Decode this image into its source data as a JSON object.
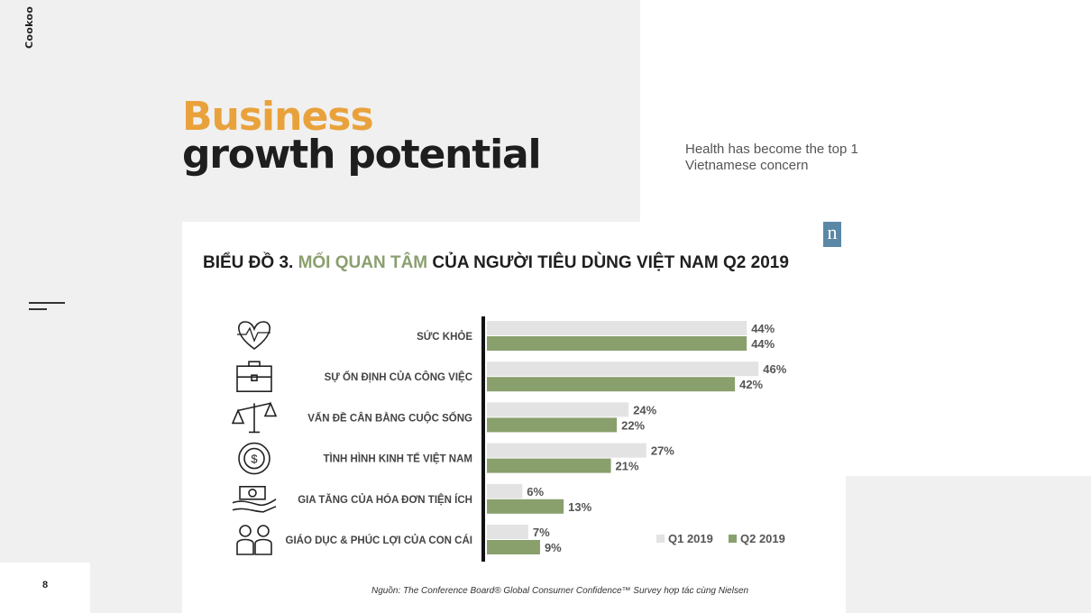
{
  "brand": "Cookoo",
  "title": {
    "line1": "Business",
    "line2": "growth potential"
  },
  "side_text": "Health has become the top 1 Vietnamese concern",
  "page_number": "8",
  "logo_letter": "n",
  "colors": {
    "q1": "#e3e3e3",
    "q2": "#89a06d",
    "accent": "#e9a23b",
    "title_highlight": "#8a9f6e"
  },
  "chart_data": {
    "type": "bar",
    "orientation": "horizontal",
    "title_prefix": "BIỂU ĐỒ 3. ",
    "title_highlight": "MỐI QUAN TÂM",
    "title_suffix": " CỦA NGƯỜI TIÊU DÙNG VIỆT NAM Q2 2019",
    "categories": [
      "SỨC KHỎE",
      "SỰ ỔN ĐỊNH CỦA CÔNG VIỆC",
      "VẤN ĐỀ CÂN BẰNG CUỘC SỐNG",
      "TÌNH HÌNH KINH TẾ VIỆT NAM",
      "GIA TĂNG CỦA HÓA ĐƠN TIỆN ÍCH",
      "GIÁO DỤC & PHÚC LỢI CỦA CON CÁI"
    ],
    "category_icons": [
      "heart-pulse-icon",
      "briefcase-icon",
      "balance-scale-icon",
      "money-cycle-icon",
      "hand-bill-icon",
      "children-icon"
    ],
    "series": [
      {
        "name": "Q1 2019",
        "values": [
          44,
          46,
          24,
          27,
          6,
          7
        ]
      },
      {
        "name": "Q2 2019",
        "values": [
          44,
          42,
          22,
          21,
          13,
          9
        ]
      }
    ],
    "value_suffix": "%",
    "xlim": [
      0,
      50
    ],
    "legend_position": "bottom-right",
    "grid": false,
    "source": "Nguồn: The Conference Board® Global Consumer Confidence™ Survey hợp tác cùng  Nielsen"
  }
}
